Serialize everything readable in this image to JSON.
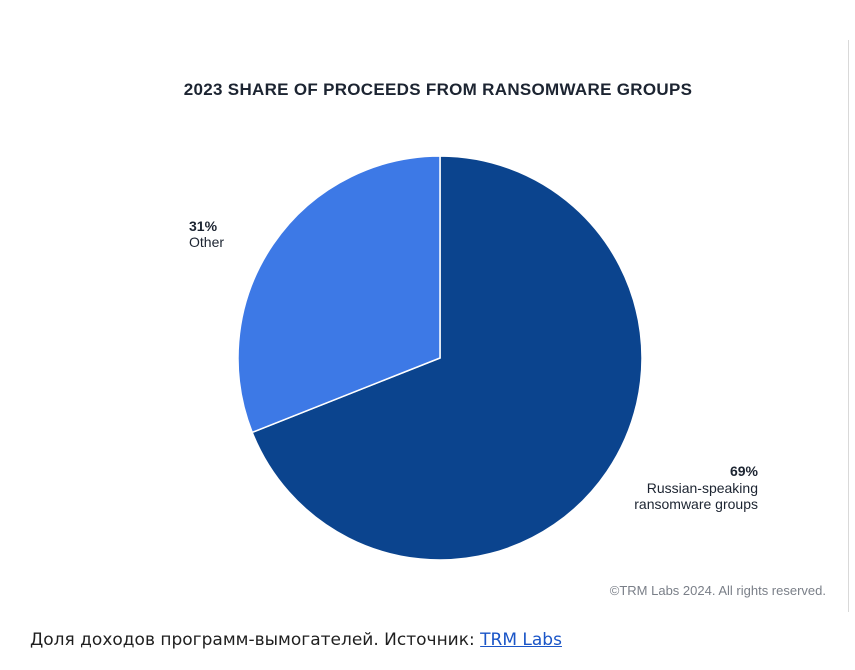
{
  "chart_data": {
    "type": "pie",
    "title": "2023 SHARE OF PROCEEDS FROM RANSOMWARE GROUPS",
    "slices": [
      {
        "label_pct": "69%",
        "label_lines": [
          "Russian-speaking",
          "ransomware groups"
        ],
        "value": 69,
        "color": "#0b448e"
      },
      {
        "label_pct": "31%",
        "label_lines": [
          "Other"
        ],
        "value": 31,
        "color": "#3d79e6"
      }
    ],
    "start_angle_deg": 0,
    "direction": "clockwise",
    "copyright": "©TRM Labs 2024. All rights reserved."
  },
  "caption": {
    "text": "Доля доходов программ-вымогателей. Источник: ",
    "link_text": "TRM Labs"
  }
}
